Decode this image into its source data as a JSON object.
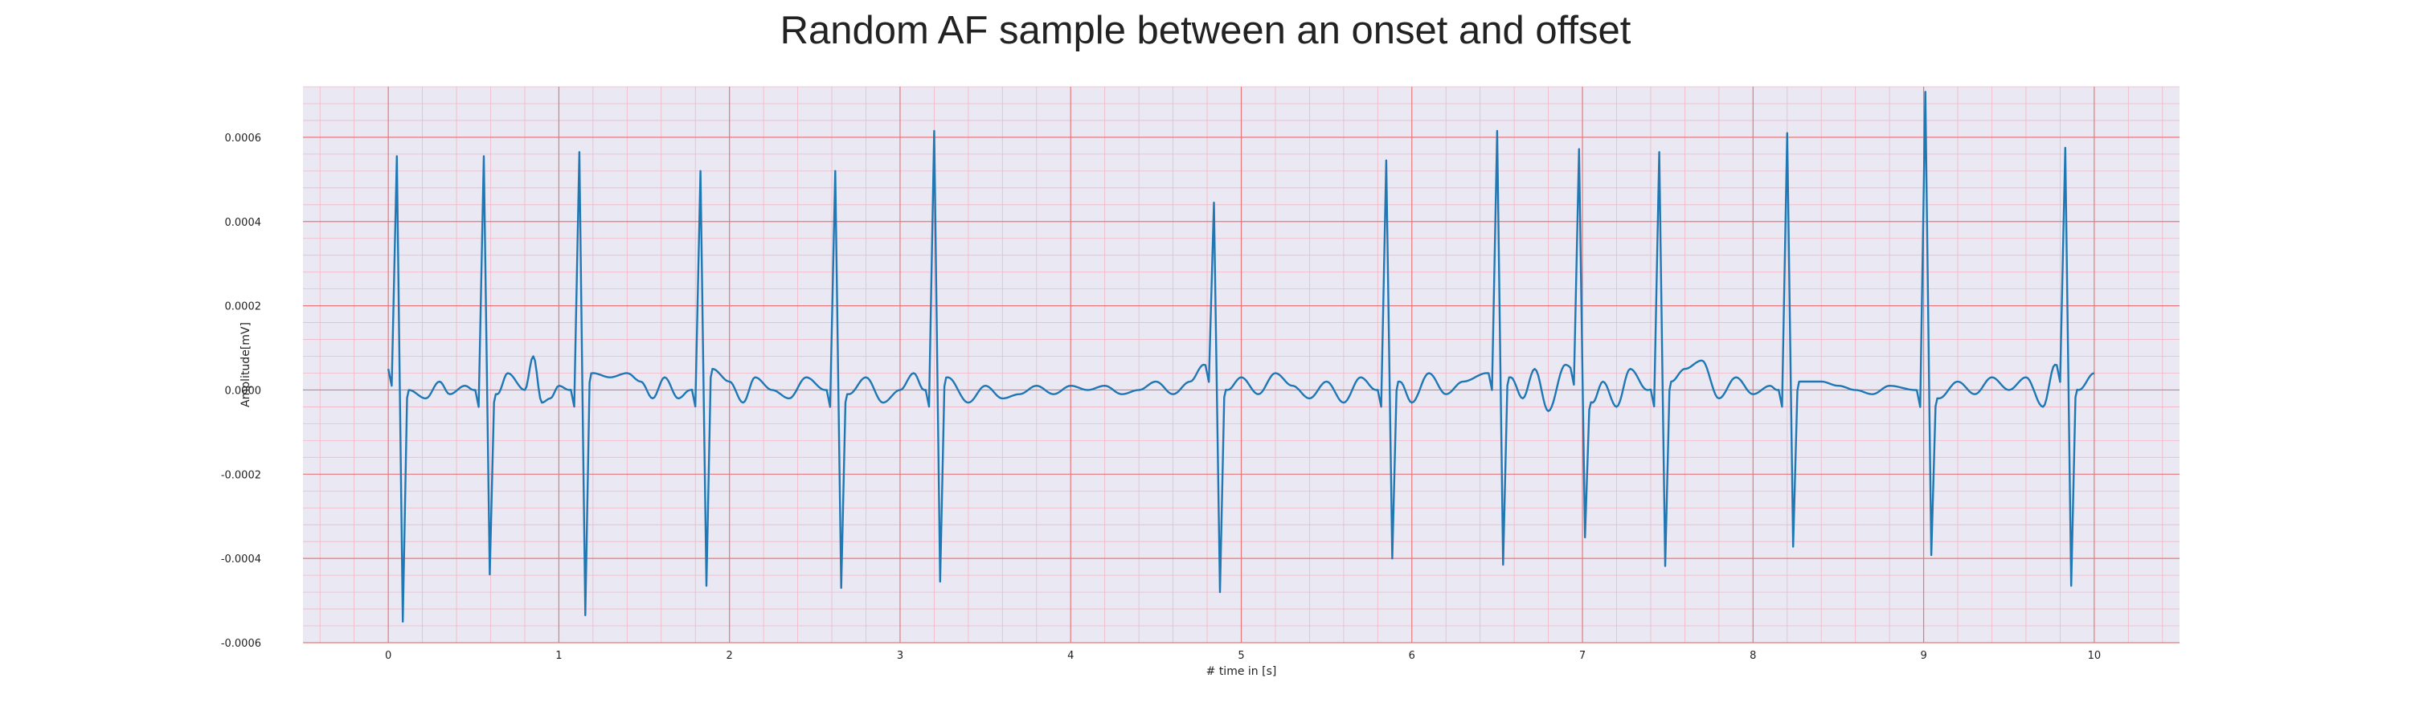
{
  "chart_data": {
    "type": "line",
    "title": "Random AF sample between an onset and offset",
    "xlabel": "# time in [s]",
    "ylabel": "Amplitude[mV]",
    "xlim": [
      -0.5,
      10.5
    ],
    "ylim": [
      -0.0006,
      0.00072
    ],
    "xticks": [
      "0",
      "1",
      "2",
      "3",
      "4",
      "5",
      "6",
      "7",
      "8",
      "9",
      "10"
    ],
    "yticks": [
      "-0.0006",
      "-0.0004",
      "-0.0002",
      "0.0000",
      "0.0002",
      "0.0004",
      "0.0006"
    ],
    "grid": true,
    "colors": {
      "line": "#1f77b4",
      "background": "#eae8f2",
      "major_grid": "#e8777b",
      "minor_grid": "#f1b7c5"
    },
    "beats": [
      {
        "t": 0.05,
        "r": 0.000555,
        "s": -0.00055
      },
      {
        "t": 0.56,
        "r": 0.000555,
        "s": -0.000438
      },
      {
        "t": 1.12,
        "r": 0.000565,
        "s": -0.000535
      },
      {
        "t": 1.83,
        "r": 0.00052,
        "s": -0.000465
      },
      {
        "t": 2.62,
        "r": 0.00052,
        "s": -0.00047
      },
      {
        "t": 3.2,
        "r": 0.000615,
        "s": -0.000455
      },
      {
        "t": 4.84,
        "r": 0.000445,
        "s": -0.00048
      },
      {
        "t": 5.85,
        "r": 0.000545,
        "s": -0.0004
      },
      {
        "t": 6.5,
        "r": 0.000615,
        "s": -0.000415
      },
      {
        "t": 6.98,
        "r": 0.000572,
        "s": -0.00035
      },
      {
        "t": 7.45,
        "r": 0.000565,
        "s": -0.000418
      },
      {
        "t": 8.2,
        "r": 0.00061,
        "s": -0.000372
      },
      {
        "t": 9.01,
        "r": 0.000708,
        "s": -0.000392
      },
      {
        "t": 9.83,
        "r": 0.000575,
        "s": -0.000465
      }
    ],
    "baseline": {
      "x": [
        0.0,
        0.12,
        0.22,
        0.3,
        0.36,
        0.45,
        0.5,
        0.64,
        0.7,
        0.8,
        0.85,
        0.9,
        0.95,
        1.0,
        1.06,
        1.2,
        1.3,
        1.4,
        1.48,
        1.55,
        1.62,
        1.7,
        1.77,
        1.9,
        2.0,
        2.08,
        2.15,
        2.25,
        2.35,
        2.45,
        2.56,
        2.7,
        2.8,
        2.9,
        3.0,
        3.08,
        3.14,
        3.28,
        3.4,
        3.5,
        3.6,
        3.7,
        3.8,
        3.9,
        4.0,
        4.1,
        4.2,
        4.3,
        4.4,
        4.5,
        4.6,
        4.7,
        4.78,
        4.92,
        5.0,
        5.1,
        5.2,
        5.3,
        5.4,
        5.5,
        5.6,
        5.7,
        5.79,
        5.93,
        6.0,
        6.1,
        6.2,
        6.3,
        6.44,
        6.58,
        6.65,
        6.72,
        6.8,
        6.9,
        7.06,
        7.12,
        7.2,
        7.28,
        7.38,
        7.52,
        7.6,
        7.7,
        7.8,
        7.9,
        8.0,
        8.1,
        8.14,
        8.28,
        8.4,
        8.5,
        8.6,
        8.7,
        8.8,
        8.95,
        9.09,
        9.2,
        9.3,
        9.4,
        9.5,
        9.6,
        9.7,
        9.77,
        9.91,
        10.0
      ],
      "y": [
        5e-05,
        0.0,
        -2e-05,
        2e-05,
        -1e-05,
        1e-05,
        0.0,
        -1e-05,
        4e-05,
        0.0,
        8e-05,
        -3e-05,
        -2e-05,
        1e-05,
        0.0,
        4e-05,
        3e-05,
        4e-05,
        2e-05,
        -2e-05,
        3e-05,
        -2e-05,
        0.0,
        5e-05,
        2e-05,
        -3e-05,
        3e-05,
        0.0,
        -2e-05,
        3e-05,
        0.0,
        -1e-05,
        3e-05,
        -3e-05,
        0.0,
        4e-05,
        0.0,
        3e-05,
        -3e-05,
        1e-05,
        -2e-05,
        -1e-05,
        1e-05,
        -1e-05,
        1e-05,
        0.0,
        1e-05,
        -1e-05,
        0.0,
        2e-05,
        -1e-05,
        2e-05,
        6e-05,
        0.0,
        3e-05,
        -1e-05,
        4e-05,
        1e-05,
        -2e-05,
        2e-05,
        -3e-05,
        3e-05,
        0.0,
        2e-05,
        -3e-05,
        4e-05,
        -1e-05,
        2e-05,
        4e-05,
        3e-05,
        -2e-05,
        5e-05,
        -5e-05,
        6e-05,
        -3e-05,
        2e-05,
        -4e-05,
        5e-05,
        0.0,
        2e-05,
        5e-05,
        7e-05,
        -2e-05,
        3e-05,
        -1e-05,
        1e-05,
        0.0,
        2e-05,
        2e-05,
        1e-05,
        0.0,
        -1e-05,
        1e-05,
        0.0,
        -2e-05,
        2e-05,
        -1e-05,
        3e-05,
        0.0,
        3e-05,
        -4e-05,
        6e-05,
        0.0,
        4e-05
      ]
    }
  }
}
